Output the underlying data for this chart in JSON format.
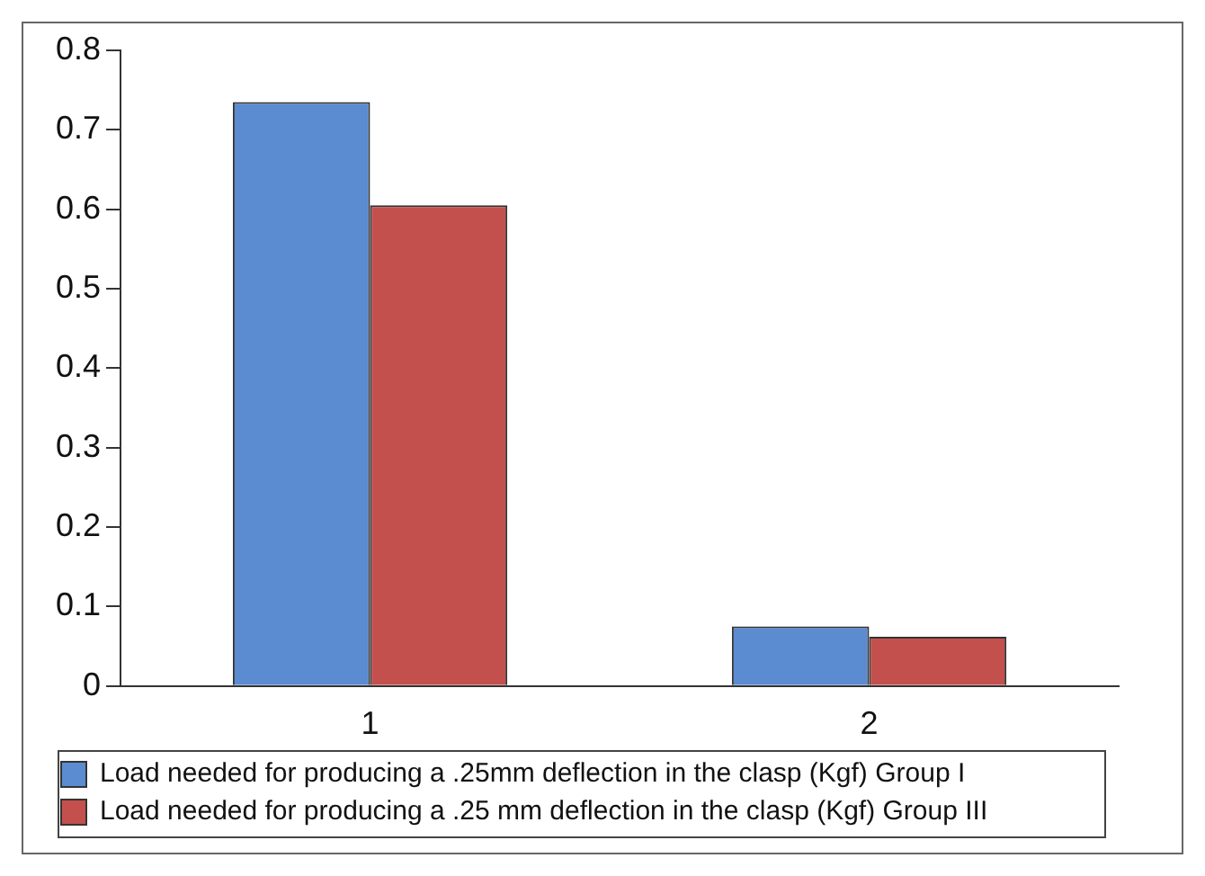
{
  "chart_data": {
    "type": "bar",
    "categories": [
      "1",
      "2"
    ],
    "series": [
      {
        "name": "Load needed for producing a .25mm deflection in the clasp (Kgf) Group I",
        "color": "#5b8bd0",
        "values": [
          0.735,
          0.075
        ]
      },
      {
        "name": "Load needed for producing a .25 mm deflection in the clasp (Kgf) Group III",
        "color": "#c4504e",
        "values": [
          0.605,
          0.062
        ]
      }
    ],
    "ylim": [
      0,
      0.8
    ],
    "yticks": [
      0,
      0.1,
      0.2,
      0.3,
      0.4,
      0.5,
      0.6,
      0.7,
      0.8
    ],
    "grid": false,
    "legend": "bottom"
  }
}
